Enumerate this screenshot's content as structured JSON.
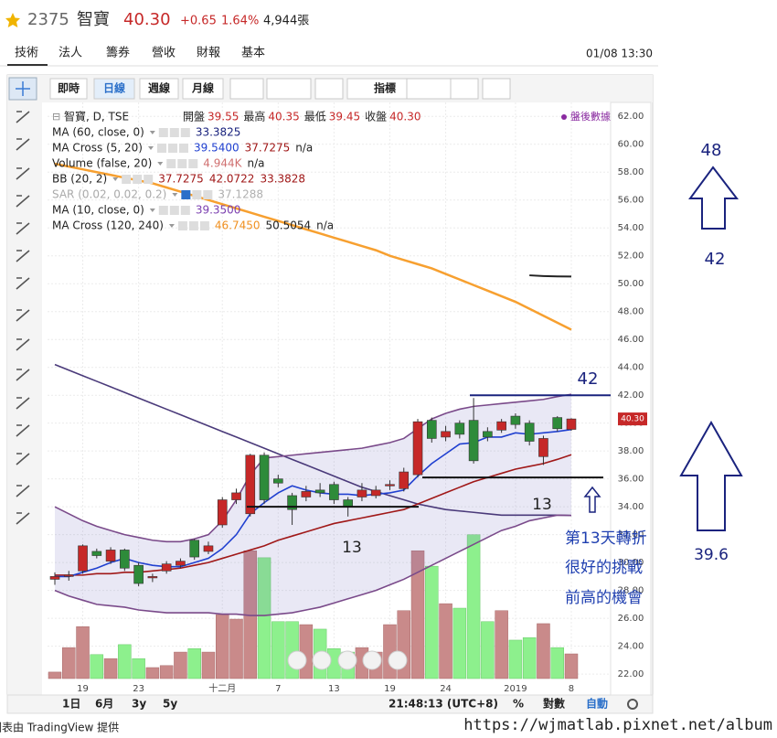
{
  "header": {
    "symbol": "2375",
    "name": "智寶",
    "price": "40.30",
    "change": "+0.65",
    "percent": "1.64%",
    "volume": "4,944張"
  },
  "tabs": [
    "技術",
    "法人",
    "籌券",
    "營收",
    "財報",
    "基本"
  ],
  "datetime": "01/08 13:30",
  "toolbar": [
    "即時",
    "日線",
    "週線",
    "月線",
    "指標"
  ],
  "chart_data": {
    "type": "candlestick",
    "title": "智寶, D, TSE",
    "ohlc_labels": [
      {
        "label": "開盤",
        "value": "39.55"
      },
      {
        "label": "最高",
        "value": "40.35"
      },
      {
        "label": "最低",
        "value": "39.45"
      },
      {
        "label": "收盤",
        "value": "40.30"
      }
    ],
    "after_hours": "盤後數據",
    "indicators": [
      {
        "label": "MA (60, close, 0)",
        "values": [
          "33.3825"
        ],
        "colors": [
          "#1a237e"
        ]
      },
      {
        "label": "MA Cross (5, 20)",
        "values": [
          "39.5400",
          "37.7275",
          "n/a"
        ],
        "colors": [
          "#2040d0",
          "#a01818",
          "#222222"
        ]
      },
      {
        "label": "Volume (false, 20)",
        "values": [
          "4.944K",
          "n/a"
        ],
        "colors": [
          "#d07070",
          "#222222"
        ]
      },
      {
        "label": "BB (20, 2)",
        "values": [
          "37.7275",
          "42.0722",
          "33.3828"
        ],
        "colors": [
          "#a01818",
          "#a01818",
          "#a01818"
        ]
      },
      {
        "label": "SAR (0.02, 0.02, 0.2)",
        "values": [
          "37.1288"
        ],
        "colors": [
          "#b0b0b0"
        ]
      },
      {
        "label": "MA (10, close, 0)",
        "values": [
          "39.3500"
        ],
        "colors": [
          "#7b3fb0"
        ]
      },
      {
        "label": "MA Cross (120, 240)",
        "values": [
          "46.7450",
          "50.5054",
          "n/a"
        ],
        "colors": [
          "#f09020",
          "#222222",
          "#222222"
        ]
      }
    ],
    "categories": [
      null,
      null,
      "19",
      null,
      null,
      null,
      "23",
      null,
      null,
      null,
      null,
      null,
      "十二月",
      null,
      null,
      null,
      "7",
      null,
      null,
      null,
      "13",
      null,
      null,
      null,
      "19",
      null,
      null,
      null,
      "24",
      null,
      null,
      null,
      null,
      "2019",
      null,
      null,
      null,
      "8"
    ],
    "open": [
      28.8,
      29.0,
      29.4,
      30.8,
      30.1,
      30.9,
      29.8,
      28.9,
      29.4,
      29.8,
      31.6,
      30.8,
      32.7,
      34.5,
      33.5,
      37.7,
      36.0,
      34.8,
      34.7,
      35.2,
      35.6,
      34.5,
      34.7,
      34.8,
      35.5,
      35.3,
      36.3,
      40.2,
      39.0,
      40.0,
      40.2,
      39.4,
      39.5,
      40.5,
      40.0,
      37.6,
      40.4,
      39.55
    ],
    "high": [
      29.3,
      29.4,
      31.3,
      31.0,
      31.1,
      31.0,
      30.0,
      29.2,
      30.1,
      30.3,
      31.7,
      31.5,
      34.7,
      35.3,
      37.8,
      37.9,
      36.3,
      35.0,
      35.5,
      35.7,
      35.8,
      34.7,
      35.7,
      35.5,
      35.9,
      36.8,
      40.3,
      40.4,
      39.8,
      40.2,
      41.8,
      39.7,
      40.3,
      40.7,
      40.2,
      39.1,
      40.5,
      40.35
    ],
    "low": [
      28.4,
      28.7,
      29.2,
      30.3,
      29.9,
      29.4,
      28.3,
      28.6,
      29.2,
      29.6,
      30.2,
      30.6,
      32.5,
      34.2,
      33.3,
      34.2,
      35.4,
      32.7,
      34.4,
      34.7,
      34.2,
      33.3,
      34.4,
      34.6,
      35.2,
      35.1,
      36.1,
      38.6,
      38.7,
      38.9,
      37.1,
      38.7,
      39.3,
      39.6,
      38.4,
      37.0,
      39.4,
      39.45
    ],
    "close": [
      29.0,
      29.1,
      31.2,
      30.5,
      30.9,
      29.6,
      28.5,
      29.0,
      29.9,
      30.1,
      30.4,
      31.2,
      34.5,
      35.0,
      37.7,
      34.5,
      35.7,
      33.8,
      35.1,
      35.0,
      34.5,
      34.0,
      35.2,
      35.2,
      35.6,
      36.5,
      40.1,
      38.9,
      39.4,
      39.2,
      37.3,
      39.0,
      40.1,
      39.9,
      38.7,
      38.9,
      39.6,
      40.3
    ],
    "volume": [
      1.3,
      6.2,
      10.4,
      4.8,
      4.0,
      6.8,
      4.0,
      2.2,
      2.6,
      5.3,
      6.0,
      5.3,
      12.8,
      11.9,
      25.6,
      24.2,
      11.4,
      11.4,
      10.8,
      9.9,
      6.0,
      5.3,
      6.2,
      5.3,
      10.8,
      13.6,
      25.6,
      22.5,
      15.0,
      14.1,
      28.8,
      11.4,
      13.6,
      7.7,
      8.2,
      11.0,
      6.2,
      4.944
    ],
    "up_color": "#c62828",
    "down_color": "#2e8b3a",
    "volume_up_color": "#c98a8a",
    "volume_down_color": "#8df08d",
    "overlays": [
      {
        "color": "#f7a030",
        "values": [
          58.6,
          58.4,
          58.2,
          58.0,
          57.8,
          57.6,
          57.4,
          57.2,
          56.9,
          56.6,
          56.3,
          56.0,
          55.7,
          55.4,
          55.1,
          54.8,
          54.5,
          54.2,
          53.9,
          53.6,
          53.3,
          53.0,
          52.7,
          52.4,
          52.0,
          51.7,
          51.4,
          51.1,
          50.7,
          50.3,
          49.9,
          49.5,
          49.1,
          48.7,
          48.2,
          47.7,
          47.2,
          46.7
        ]
      },
      {
        "color": "#4a3a7a",
        "values": [
          44.2,
          43.8,
          43.4,
          43.0,
          42.6,
          42.2,
          41.8,
          41.4,
          41.0,
          40.6,
          40.2,
          39.8,
          39.4,
          39.0,
          38.6,
          38.2,
          37.8,
          37.4,
          37.0,
          36.6,
          36.2,
          35.8,
          35.4,
          35.1,
          34.8,
          34.5,
          34.2,
          34.0,
          33.8,
          33.7,
          33.6,
          33.5,
          33.4,
          33.4,
          33.4,
          33.4,
          33.4,
          33.38
        ]
      },
      {
        "color": "#a01818",
        "values": [
          29.1,
          29.1,
          29.1,
          29.2,
          29.2,
          29.3,
          29.3,
          29.4,
          29.5,
          29.6,
          29.8,
          30.0,
          30.3,
          30.6,
          30.9,
          31.2,
          31.6,
          31.9,
          32.2,
          32.5,
          32.8,
          33.0,
          33.2,
          33.4,
          33.6,
          33.8,
          34.2,
          34.6,
          35.0,
          35.4,
          35.8,
          36.1,
          36.4,
          36.7,
          36.9,
          37.1,
          37.4,
          37.73
        ]
      },
      {
        "color": "#2040d0",
        "values": [
          29.0,
          29.0,
          29.3,
          29.6,
          30.0,
          30.3,
          30.0,
          29.8,
          29.7,
          29.7,
          30.0,
          30.3,
          31.0,
          32.0,
          33.5,
          34.3,
          35.0,
          35.5,
          35.2,
          35.0,
          34.9,
          34.9,
          34.8,
          34.9,
          35.0,
          35.2,
          36.2,
          37.1,
          37.8,
          38.5,
          38.6,
          39.0,
          39.0,
          39.3,
          39.2,
          39.3,
          39.4,
          39.54
        ]
      },
      {
        "color": "#7a4a8a",
        "values": [
          34.0,
          33.5,
          33.0,
          32.6,
          32.3,
          32.0,
          31.8,
          31.6,
          31.5,
          31.5,
          31.7,
          32.0,
          33.0,
          34.5,
          36.3,
          37.5,
          37.6,
          37.7,
          37.8,
          37.9,
          38.0,
          38.1,
          38.2,
          38.4,
          38.6,
          38.9,
          39.6,
          40.3,
          40.7,
          41.0,
          41.2,
          41.3,
          41.4,
          41.5,
          41.6,
          41.7,
          41.9,
          42.07
        ]
      },
      {
        "color": "#7a4a8a",
        "values": [
          28.0,
          27.6,
          27.3,
          27.0,
          26.9,
          26.8,
          26.6,
          26.5,
          26.4,
          26.4,
          26.4,
          26.4,
          26.3,
          26.3,
          26.2,
          26.2,
          26.3,
          26.4,
          26.6,
          26.8,
          27.1,
          27.4,
          27.7,
          28.0,
          28.4,
          28.8,
          29.3,
          29.8,
          30.3,
          30.8,
          31.3,
          31.8,
          32.3,
          32.6,
          33.0,
          33.2,
          33.4,
          33.38
        ]
      },
      {
        "color": "#222222",
        "values": [
          null,
          null,
          null,
          null,
          null,
          null,
          null,
          null,
          null,
          null,
          null,
          null,
          null,
          null,
          null,
          null,
          null,
          null,
          null,
          null,
          null,
          null,
          null,
          null,
          null,
          null,
          null,
          null,
          null,
          null,
          null,
          null,
          null,
          null,
          50.6,
          50.55,
          50.52,
          50.51
        ]
      }
    ],
    "ylim": [
      20.5,
      63.0
    ],
    "yticks": [
      {
        "value": 22,
        "label": "22.00"
      },
      {
        "value": 24,
        "label": "24.00"
      },
      {
        "value": 26,
        "label": "26.00"
      },
      {
        "value": 28,
        "label": "28.00"
      },
      {
        "value": 30,
        "label": "30.00"
      },
      {
        "value": 32,
        "label": "32.00"
      },
      {
        "value": 34,
        "label": "34.00"
      },
      {
        "value": 36,
        "label": "36.00"
      },
      {
        "value": 38,
        "label": "38.00"
      },
      {
        "value": 40,
        "label": "40.00"
      },
      {
        "value": 42,
        "label": "42.00"
      },
      {
        "value": 44,
        "label": "44.00"
      },
      {
        "value": 46,
        "label": "46.00"
      },
      {
        "value": 48,
        "label": "48.00"
      },
      {
        "value": 50,
        "label": "50.00"
      },
      {
        "value": 52,
        "label": "52.00"
      },
      {
        "value": 54,
        "label": "54.00"
      },
      {
        "value": 56,
        "label": "56.00"
      },
      {
        "value": 58,
        "label": "58.00"
      },
      {
        "value": 60,
        "label": "60.00"
      },
      {
        "value": 62,
        "label": "62.00"
      }
    ],
    "grid": true,
    "price_tag": "40.30",
    "levels": [
      {
        "value": 42,
        "color": "#1a237e"
      },
      {
        "value": 36.1,
        "color": "#111111"
      },
      {
        "value": 34.0,
        "color": "#111111"
      }
    ],
    "annotations": [
      "42",
      "13",
      "13",
      "第13天轉折",
      "很好的挑戰",
      "前高的機會"
    ],
    "side_notes": [
      "48",
      "42",
      "39.6"
    ]
  },
  "bottom_bar": {
    "ranges": [
      "1日",
      "6月",
      "3y",
      "5y"
    ],
    "time": "21:48:13 (UTC+8)",
    "options": [
      "%",
      "對數",
      "自動"
    ]
  },
  "footer": {
    "credit": "圖表由 TradingView 提供",
    "watermark": "https://wjmatlab.pixnet.net/album"
  }
}
